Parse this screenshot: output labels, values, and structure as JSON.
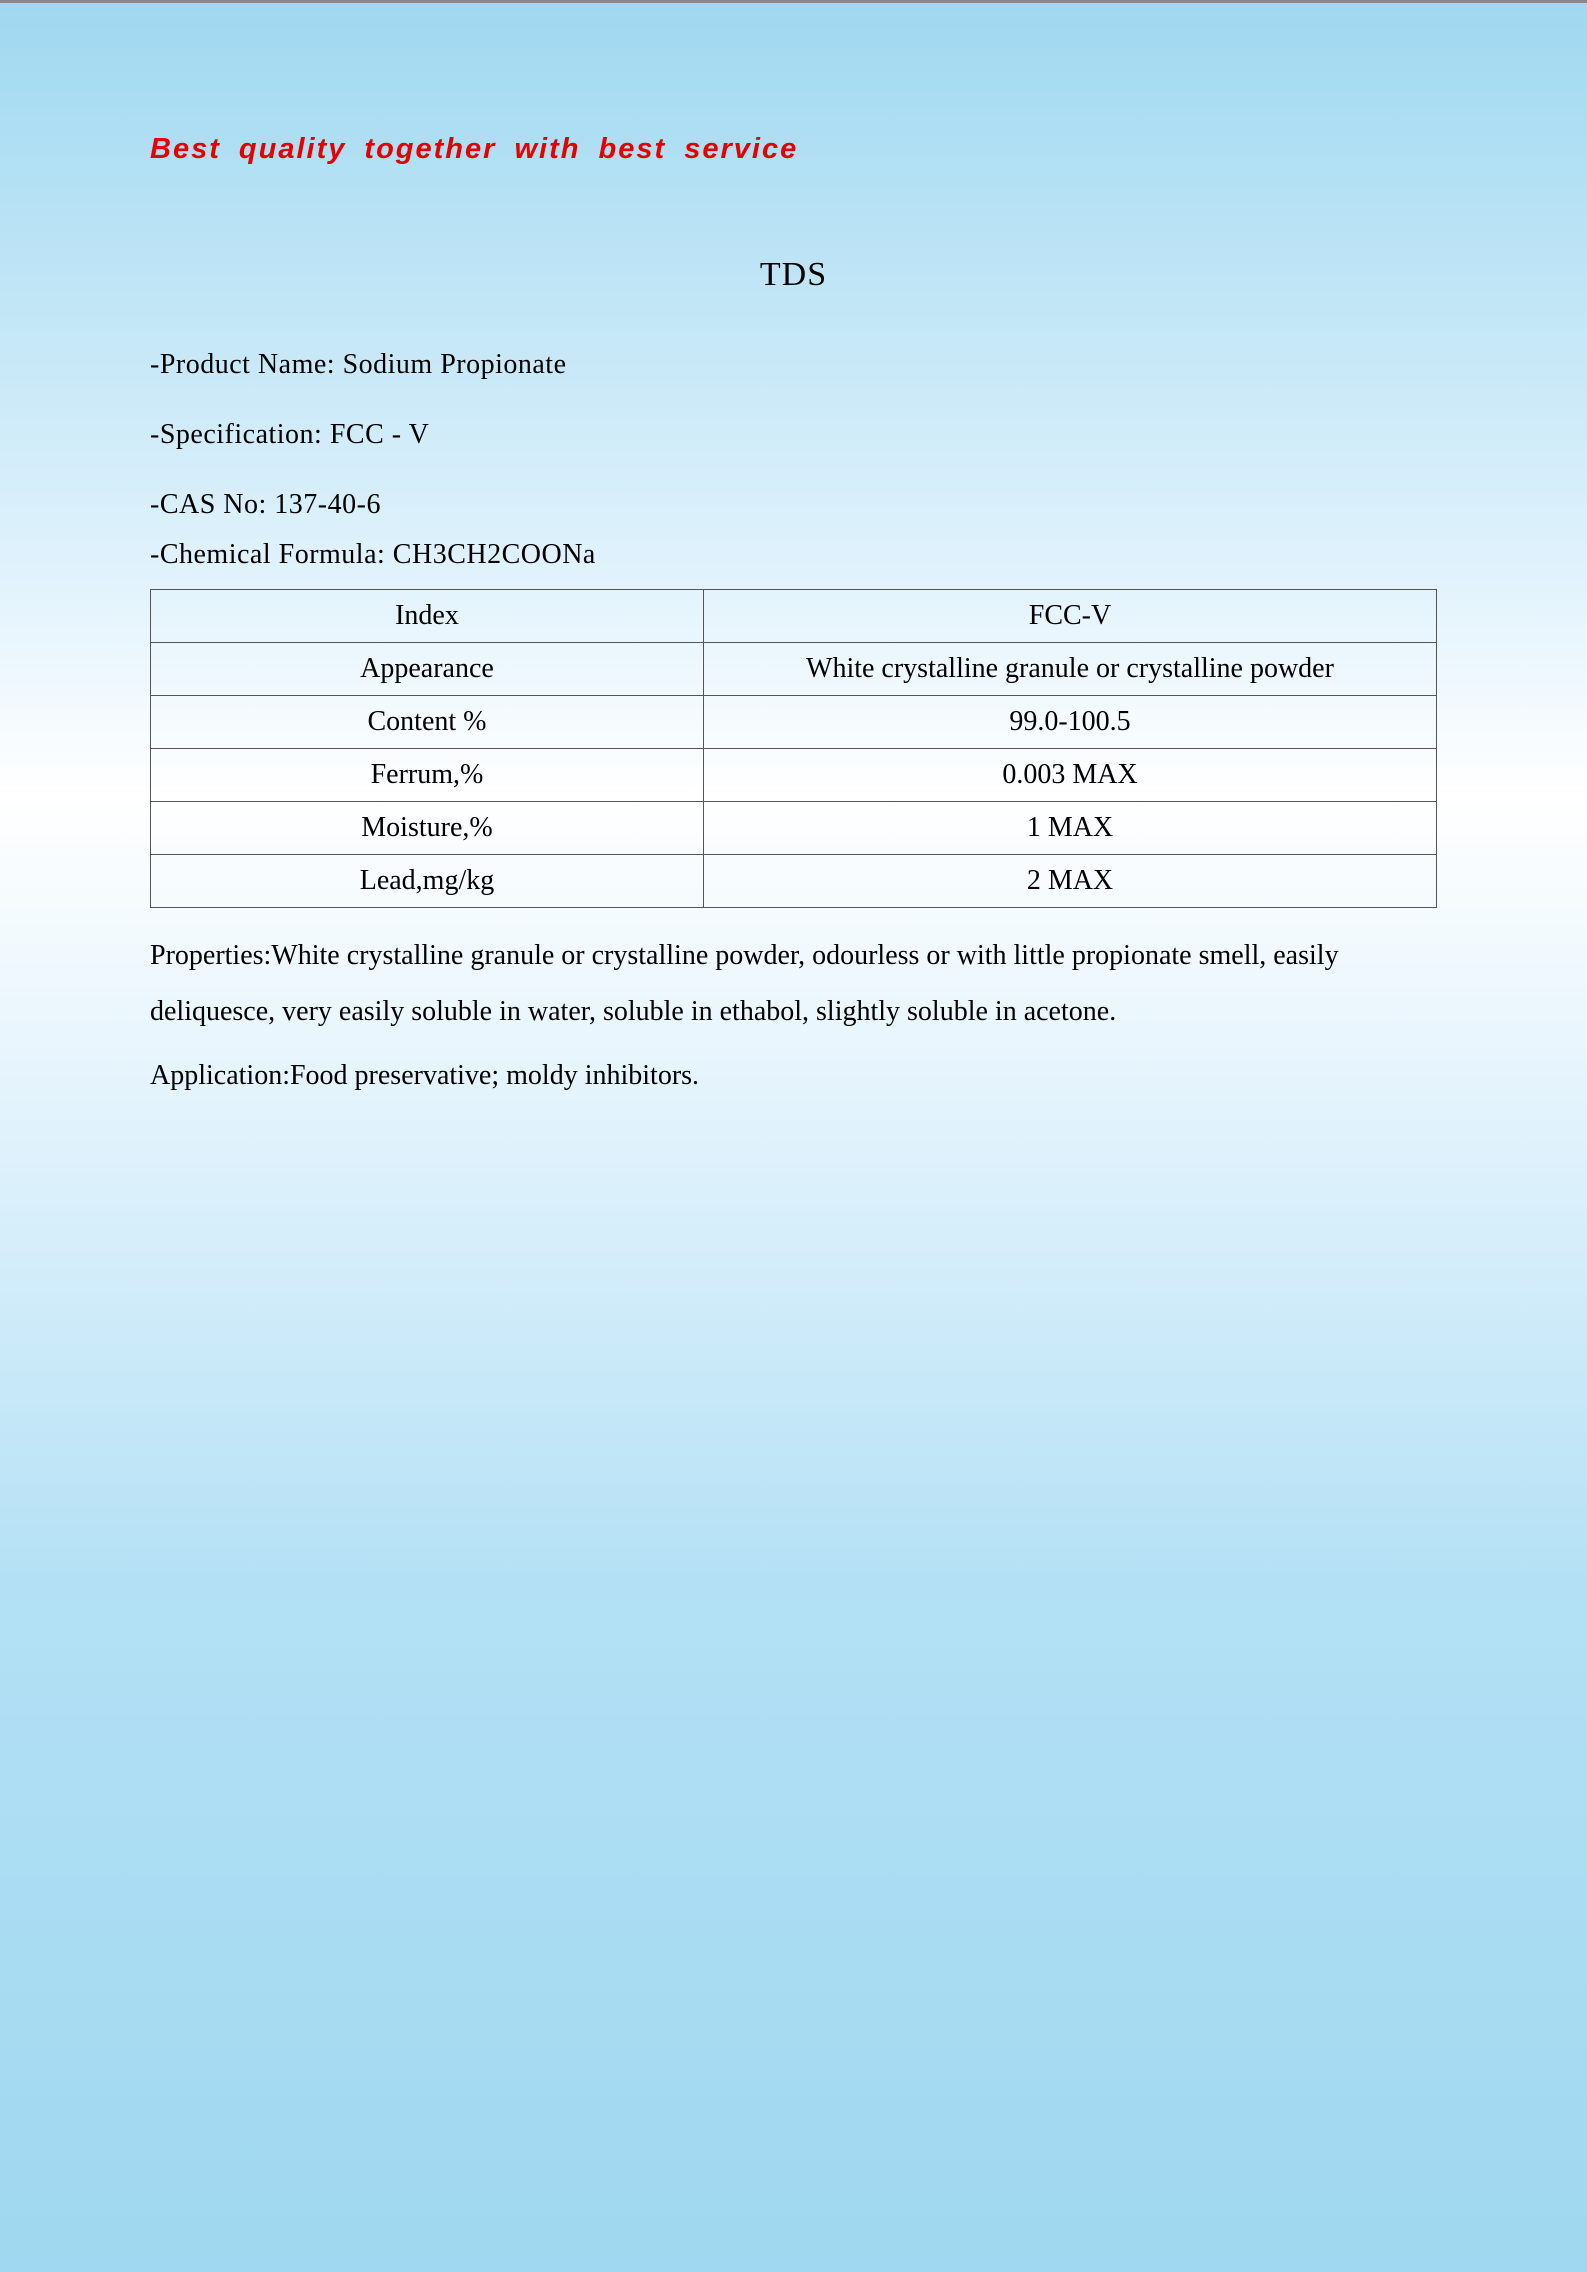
{
  "header": {
    "tagline": "Best  quality  together  with  best  service"
  },
  "document": {
    "title": "TDS",
    "product_name_label": "-Product Name: ",
    "product_name": "Sodium  Propionate",
    "specification_label": "-Specification: ",
    "specification": "FCC - V",
    "cas_no_label": "-CAS No: ",
    "cas_no": "137-40-6",
    "chemical_formula_label": "-Chemical Formula: ",
    "chemical_formula": "CH3CH2COONa"
  },
  "table": {
    "columns": [
      "Index",
      "FCC-V"
    ],
    "rows": [
      [
        "Appearance",
        "White crystalline granule or crystalline powder"
      ],
      [
        "Content %",
        "99.0-100.5"
      ],
      [
        "Ferrum,%",
        "0.003 MAX"
      ],
      [
        "Moisture,%",
        "1 MAX"
      ],
      [
        "Lead,mg/kg",
        "2 MAX"
      ]
    ],
    "border_color": "#555555",
    "font_size": 28
  },
  "properties": {
    "text": "Properties:White crystalline granule or crystalline powder, odourless or with little propionate smell, easily deliquesce, very easily soluble in water, soluble in ethabol, slightly soluble in acetone."
  },
  "application": {
    "text": "Application:Food preservative; moldy inhibitors."
  },
  "styling": {
    "tagline_color": "#e60000",
    "background_gradient_top": "#9fd8f0",
    "background_gradient_mid": "#e0f2fc",
    "background_gradient_bottom": "#9fd8f0",
    "text_color": "#000000",
    "tagline_fontsize": 29,
    "title_fontsize": 34,
    "body_fontsize": 28
  }
}
